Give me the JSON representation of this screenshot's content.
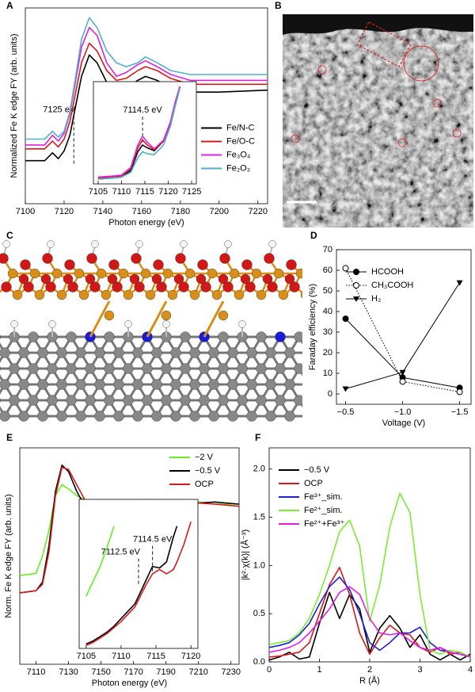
{
  "chart_data": [
    {
      "panel": "A",
      "type": "line",
      "xlabel": "Photon energy (eV)",
      "ylabel": "Normalized Fe K edge FY (arb. units)",
      "xlim": [
        7100,
        7225
      ],
      "xticks": [
        7100,
        7120,
        7140,
        7160,
        7180,
        7200,
        7220
      ],
      "ylim": [
        0,
        1
      ],
      "legend": "center right",
      "x": [
        7100,
        7110,
        7114,
        7117,
        7120,
        7123,
        7126,
        7129,
        7133,
        7137,
        7142,
        7147,
        7152,
        7158,
        7162,
        7168,
        7175,
        7185,
        7200,
        7225
      ],
      "series": [
        {
          "name": "Fe/N-C",
          "color": "#000000",
          "values": [
            0.22,
            0.22,
            0.26,
            0.23,
            0.27,
            0.35,
            0.5,
            0.65,
            0.76,
            0.72,
            0.62,
            0.58,
            0.59,
            0.63,
            0.65,
            0.63,
            0.59,
            0.57,
            0.57,
            0.58
          ]
        },
        {
          "name": "Fe/O-C",
          "color": "#d7191c",
          "values": [
            0.28,
            0.28,
            0.32,
            0.29,
            0.33,
            0.42,
            0.57,
            0.72,
            0.82,
            0.78,
            0.68,
            0.63,
            0.64,
            0.68,
            0.7,
            0.68,
            0.64,
            0.61,
            0.61,
            0.61
          ]
        },
        {
          "name": "Fe₃O₄",
          "color": "#e020e0",
          "values": [
            0.3,
            0.3,
            0.35,
            0.32,
            0.36,
            0.46,
            0.63,
            0.8,
            0.9,
            0.86,
            0.72,
            0.65,
            0.67,
            0.71,
            0.73,
            0.7,
            0.66,
            0.63,
            0.63,
            0.63
          ]
        },
        {
          "name": "Fe₂O₃",
          "color": "#4fb0c6",
          "values": [
            0.33,
            0.33,
            0.37,
            0.34,
            0.37,
            0.47,
            0.65,
            0.84,
            0.95,
            0.9,
            0.78,
            0.72,
            0.7,
            0.72,
            0.75,
            0.72,
            0.68,
            0.66,
            0.66,
            0.66
          ]
        }
      ],
      "annotations": [
        {
          "text": "7125 eV",
          "x": 7125
        }
      ],
      "inset": {
        "type": "line",
        "xlim": [
          7104,
          7126
        ],
        "xticks": [
          7105,
          7110,
          7115,
          7120,
          7125
        ],
        "ylim": [
          0,
          1.05
        ],
        "x": [
          7105,
          7108,
          7110,
          7112,
          7113.5,
          7114.5,
          7115.5,
          7117,
          7119,
          7120.5,
          7121.5,
          7122.5
        ],
        "series": [
          {
            "color": "#000000",
            "values": [
              0.05,
              0.06,
              0.07,
              0.14,
              0.33,
              0.4,
              0.37,
              0.34,
              0.44,
              0.64,
              0.84,
              1.0
            ]
          },
          {
            "color": "#d7191c",
            "values": [
              0.06,
              0.07,
              0.08,
              0.16,
              0.37,
              0.45,
              0.4,
              0.35,
              0.44,
              0.63,
              0.83,
              1.0
            ]
          },
          {
            "color": "#e020e0",
            "values": [
              0.07,
              0.08,
              0.09,
              0.17,
              0.4,
              0.49,
              0.43,
              0.36,
              0.45,
              0.64,
              0.84,
              1.0
            ]
          },
          {
            "color": "#4fb0c6",
            "values": [
              0.05,
              0.06,
              0.07,
              0.12,
              0.27,
              0.33,
              0.31,
              0.3,
              0.4,
              0.6,
              0.8,
              0.98
            ]
          }
        ],
        "annotations": [
          {
            "text": "7114.5 eV",
            "x": 7114.5
          }
        ]
      }
    },
    {
      "panel": "B",
      "type": "image"
    },
    {
      "panel": "C",
      "type": "structure"
    },
    {
      "panel": "D",
      "type": "line",
      "xlabel": "Voltage (V)",
      "ylabel": "Faraday efficiency (%)",
      "xlim": [
        -0.42,
        -1.6
      ],
      "xticks": [
        {
          "value": -0.5,
          "label": "−0.5"
        },
        {
          "value": -1.0,
          "label": "−1.0"
        },
        {
          "value": -1.5,
          "label": "−1.5"
        }
      ],
      "ylim": [
        -5,
        70
      ],
      "yticks": [
        0,
        10,
        20,
        30,
        40,
        50,
        60,
        70
      ],
      "legend": "upper left",
      "x": [
        -0.5,
        -1.0,
        -1.5
      ],
      "series": [
        {
          "name": "HCOOH",
          "color": "#000000",
          "marker": "filled-circle",
          "linestyle": "solid",
          "values": [
            36.5,
            8,
            3
          ]
        },
        {
          "name": "CH₃COOH",
          "color": "#000000",
          "marker": "open-circle",
          "linestyle": "dotted",
          "values": [
            61,
            6,
            1
          ]
        },
        {
          "name": "H₂",
          "color": "#000000",
          "marker": "triangle",
          "linestyle": "solid",
          "values": [
            2.5,
            10.5,
            54
          ]
        }
      ]
    },
    {
      "panel": "E",
      "type": "line",
      "xlabel": "Photon energy (eV)",
      "ylabel": "Norm. Fe K edge FY (arb. units)",
      "xlim": [
        7100,
        7235
      ],
      "xticks": [
        7110,
        7130,
        7150,
        7170,
        7190,
        7210,
        7230
      ],
      "ylim": [
        0,
        1
      ],
      "legend": "upper right",
      "x": [
        7100,
        7110,
        7114,
        7118,
        7122,
        7126,
        7130,
        7135,
        7140,
        7150,
        7158,
        7165,
        7175,
        7185,
        7200,
        7220,
        7235
      ],
      "series": [
        {
          "name": "−2 V",
          "color": "#66ee22",
          "values": [
            0.41,
            0.42,
            0.5,
            0.62,
            0.78,
            0.83,
            0.81,
            0.78,
            0.76,
            0.72,
            0.7,
            0.72,
            0.74,
            0.75,
            0.76,
            0.74,
            0.74
          ]
        },
        {
          "name": "−0.5 V",
          "color": "#000000",
          "values": [
            0.33,
            0.34,
            0.38,
            0.55,
            0.8,
            0.92,
            0.89,
            0.8,
            0.73,
            0.69,
            0.68,
            0.72,
            0.76,
            0.75,
            0.74,
            0.75,
            0.74
          ]
        },
        {
          "name": "OCP",
          "color": "#d7191c",
          "values": [
            0.33,
            0.34,
            0.37,
            0.52,
            0.78,
            0.91,
            0.9,
            0.83,
            0.76,
            0.7,
            0.69,
            0.73,
            0.76,
            0.76,
            0.75,
            0.74,
            0.73
          ]
        }
      ],
      "inset": {
        "type": "line",
        "xlim": [
          7104,
          7121
        ],
        "xticks": [
          7105,
          7110,
          7115,
          7120
        ],
        "ylim": [
          0,
          1
        ],
        "x": [
          7105,
          7106,
          7107,
          7108,
          7109,
          7110,
          7112,
          7113.5,
          7114.5,
          7115.5,
          7116.5,
          7117.5,
          7118,
          7119,
          7120
        ],
        "series": [
          {
            "color": "#66ee22",
            "values": [
              0.35,
              0.45,
              0.55,
              0.68,
              0.82,
              null,
              null,
              null,
              null,
              null,
              null,
              null,
              null,
              null,
              null
            ]
          },
          {
            "color": "#000000",
            "values": [
              0.03,
              0.05,
              0.08,
              0.11,
              0.15,
              0.2,
              0.3,
              0.45,
              0.55,
              0.54,
              0.58,
              0.75,
              0.82,
              null,
              null
            ]
          },
          {
            "color": "#d7191c",
            "values": [
              0.02,
              0.04,
              0.07,
              0.1,
              0.14,
              0.18,
              0.28,
              0.42,
              0.5,
              0.53,
              0.5,
              0.53,
              0.58,
              0.7,
              0.85
            ]
          }
        ],
        "annotations": [
          {
            "text": "7112.5 eV",
            "x": 7112.5
          },
          {
            "text": "7114.5 eV",
            "x": 7114.5
          }
        ]
      }
    },
    {
      "panel": "F",
      "type": "line",
      "xlabel": "R (Å)",
      "ylabel": "|k²·χ(k)| (Å⁻³)",
      "xlim": [
        0,
        4
      ],
      "xticks": [
        0,
        1,
        2,
        3,
        4
      ],
      "ylim": [
        0,
        2.22
      ],
      "yticks": [
        {
          "value": 0,
          "label": "0.0"
        },
        0.5,
        {
          "value": 1,
          "label": "1.0"
        },
        1.5,
        {
          "value": 2,
          "label": "2.0"
        }
      ],
      "legend": "upper left",
      "x": [
        0,
        0.2,
        0.4,
        0.6,
        0.8,
        1.0,
        1.2,
        1.4,
        1.6,
        1.8,
        2.0,
        2.2,
        2.4,
        2.6,
        2.8,
        3.0,
        3.2,
        3.4,
        3.6,
        3.8,
        4.0
      ],
      "series": [
        {
          "name": "−0.5 V",
          "color": "#000000",
          "values": [
            0.02,
            0.05,
            0.1,
            0.03,
            0.05,
            0.4,
            0.72,
            0.45,
            0.7,
            0.55,
            0.1,
            0.35,
            0.48,
            0.35,
            0.15,
            0.28,
            0.08,
            0.02,
            0.08,
            0.02,
            0.08
          ]
        },
        {
          "name": "OCP",
          "color": "#d7191c",
          "values": [
            0.05,
            0.06,
            0.08,
            0.1,
            0.2,
            0.5,
            0.8,
            0.98,
            0.7,
            0.3,
            0.08,
            0.25,
            0.38,
            0.3,
            0.28,
            0.15,
            0.1,
            0.15,
            0.08,
            0.1,
            0.05
          ]
        },
        {
          "name": "Fe³⁺_sim.",
          "color": "#1f1fd0",
          "values": [
            0.15,
            0.17,
            0.2,
            0.28,
            0.4,
            0.6,
            0.78,
            0.88,
            0.75,
            0.5,
            0.2,
            0.12,
            0.2,
            0.3,
            0.3,
            0.36,
            0.2,
            0.12,
            0.1,
            0.08,
            0.05
          ]
        },
        {
          "name": "Fe²⁺_sim.",
          "color": "#77ee33",
          "values": [
            0.18,
            0.2,
            0.22,
            0.3,
            0.45,
            0.7,
            1.0,
            1.35,
            1.47,
            1.2,
            0.42,
            0.8,
            1.4,
            1.75,
            1.55,
            0.7,
            0.12,
            0.08,
            0.12,
            0.1,
            0.05
          ]
        },
        {
          "name": "Fe²⁺+Fe³⁺",
          "color": "#e020e0",
          "values": [
            0.1,
            0.12,
            0.15,
            0.2,
            0.3,
            0.42,
            0.55,
            0.72,
            0.78,
            0.7,
            0.45,
            0.3,
            0.28,
            0.3,
            0.22,
            0.15,
            0.12,
            0.15,
            0.1,
            0.08,
            0.05
          ]
        }
      ]
    }
  ]
}
